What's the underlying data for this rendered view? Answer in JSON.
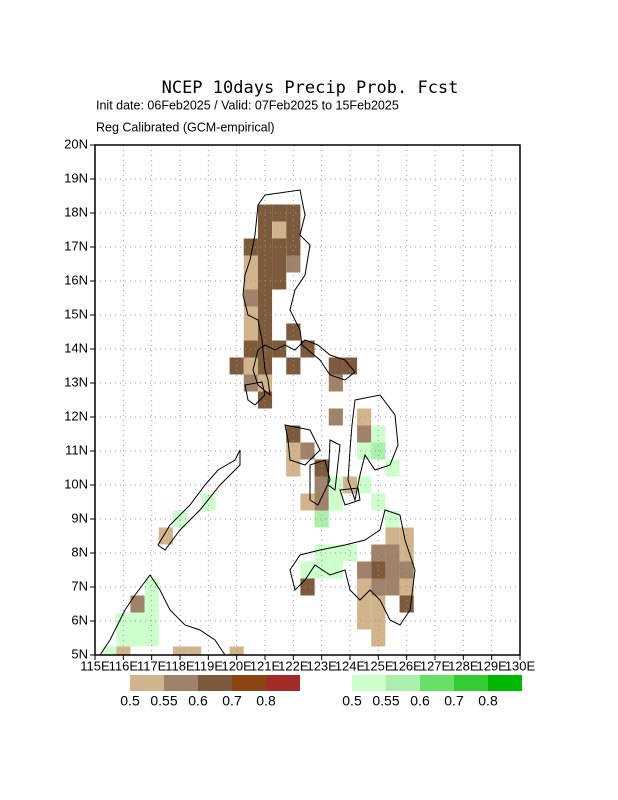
{
  "chart_data": {
    "type": "grid-map",
    "title": "NCEP 10days Precip Prob. Fcst",
    "subtitle": "Init date: 06Feb2025 / Valid: 07Feb2025 to 15Feb2025",
    "subtitle2": "Reg Calibrated (GCM-empirical)",
    "xlim": [
      115,
      130
    ],
    "ylim": [
      5,
      20
    ],
    "xticks": [
      {
        "value": 115,
        "label": "115E"
      },
      {
        "value": 116,
        "label": "116E"
      },
      {
        "value": 117,
        "label": "117E"
      },
      {
        "value": 118,
        "label": "118E"
      },
      {
        "value": 119,
        "label": "119E"
      },
      {
        "value": 120,
        "label": "120E"
      },
      {
        "value": 121,
        "label": "121E"
      },
      {
        "value": 122,
        "label": "122E"
      },
      {
        "value": 123,
        "label": "123E"
      },
      {
        "value": 124,
        "label": "124E"
      },
      {
        "value": 125,
        "label": "125E"
      },
      {
        "value": 126,
        "label": "126E"
      },
      {
        "value": 127,
        "label": "127E"
      },
      {
        "value": 128,
        "label": "128E"
      },
      {
        "value": 129,
        "label": "129E"
      },
      {
        "value": 130,
        "label": "130E"
      }
    ],
    "yticks": [
      {
        "value": 5,
        "label": "5N"
      },
      {
        "value": 6,
        "label": "6N"
      },
      {
        "value": 7,
        "label": "7N"
      },
      {
        "value": 8,
        "label": "8N"
      },
      {
        "value": 9,
        "label": "9N"
      },
      {
        "value": 10,
        "label": "10N"
      },
      {
        "value": 11,
        "label": "11N"
      },
      {
        "value": 12,
        "label": "12N"
      },
      {
        "value": 13,
        "label": "13N"
      },
      {
        "value": 14,
        "label": "14N"
      },
      {
        "value": 15,
        "label": "15N"
      },
      {
        "value": 16,
        "label": "16N"
      },
      {
        "value": 17,
        "label": "17N"
      },
      {
        "value": 18,
        "label": "18N"
      },
      {
        "value": 19,
        "label": "19N"
      },
      {
        "value": 20,
        "label": "20N"
      }
    ],
    "grid": true,
    "levels": [
      0.5,
      0.55,
      0.6,
      0.7,
      0.8
    ],
    "brown_colors": [
      "#d2b48c",
      "#a0826a",
      "#7d5a3c",
      "#8b4513",
      "#a52a2a"
    ],
    "green_colors": [
      "#ccffcc",
      "#aaf0aa",
      "#66e066",
      "#33cc33",
      "#00b800"
    ],
    "brown_cells": [
      [
        121,
        18,
        0.6
      ],
      [
        121.5,
        18,
        0.6
      ],
      [
        122,
        18,
        0.6
      ],
      [
        121,
        17.5,
        0.6
      ],
      [
        121.5,
        17.5,
        0.5
      ],
      [
        122,
        17.5,
        0.6
      ],
      [
        120.5,
        17,
        0.6
      ],
      [
        121,
        17,
        0.6
      ],
      [
        121.5,
        17,
        0.6
      ],
      [
        122,
        17,
        0.6
      ],
      [
        120.5,
        16.5,
        0.5
      ],
      [
        121,
        16.5,
        0.6
      ],
      [
        121.5,
        16.5,
        0.6
      ],
      [
        122,
        16.5,
        0.55
      ],
      [
        120.5,
        16,
        0.5
      ],
      [
        121,
        16,
        0.6
      ],
      [
        121.5,
        16,
        0.6
      ],
      [
        120.5,
        15.5,
        0.55
      ],
      [
        121,
        15.5,
        0.6
      ],
      [
        120.5,
        15,
        0.5
      ],
      [
        121,
        15,
        0.6
      ],
      [
        120.5,
        14.5,
        0.5
      ],
      [
        121,
        14.5,
        0.6
      ],
      [
        122,
        14.5,
        0.6
      ],
      [
        120.5,
        14,
        0.6
      ],
      [
        121,
        14,
        0.6
      ],
      [
        121.5,
        14,
        0.6
      ],
      [
        122.5,
        14,
        0.6
      ],
      [
        120,
        13.5,
        0.6
      ],
      [
        120.5,
        13.5,
        0.5
      ],
      [
        121,
        13.5,
        0.6
      ],
      [
        122,
        13.5,
        0.6
      ],
      [
        123.5,
        13.5,
        0.6
      ],
      [
        124,
        13.5,
        0.6
      ],
      [
        120.5,
        13,
        0.55
      ],
      [
        121,
        13,
        0.5
      ],
      [
        123.5,
        13,
        0.55
      ],
      [
        121,
        12.5,
        0.6
      ],
      [
        123.5,
        12,
        0.55
      ],
      [
        124.5,
        12,
        0.5
      ],
      [
        122,
        11.5,
        0.6
      ],
      [
        124.5,
        11.5,
        0.55
      ],
      [
        122,
        11,
        0.5
      ],
      [
        122.5,
        11,
        0.55
      ],
      [
        122,
        10.5,
        0.5
      ],
      [
        123,
        10.5,
        0.6
      ],
      [
        123,
        10,
        0.55
      ],
      [
        124,
        10,
        0.5
      ],
      [
        122.5,
        9.5,
        0.5
      ],
      [
        123,
        9.5,
        0.55
      ],
      [
        117.5,
        8.5,
        0.5
      ],
      [
        125.5,
        8.5,
        0.5
      ],
      [
        126,
        8.5,
        0.5
      ],
      [
        125,
        8,
        0.55
      ],
      [
        125.5,
        8,
        0.55
      ],
      [
        126,
        8,
        0.5
      ],
      [
        124.5,
        7.5,
        0.55
      ],
      [
        125,
        7.5,
        0.6
      ],
      [
        125.5,
        7.5,
        0.55
      ],
      [
        126,
        7.5,
        0.55
      ],
      [
        122.5,
        7,
        0.6
      ],
      [
        124.5,
        7,
        0.5
      ],
      [
        125,
        7,
        0.55
      ],
      [
        125.5,
        7,
        0.55
      ],
      [
        126,
        7,
        0.5
      ],
      [
        124.5,
        6.5,
        0.5
      ],
      [
        125,
        6.5,
        0.5
      ],
      [
        126,
        6.5,
        0.6
      ],
      [
        124.5,
        6,
        0.5
      ],
      [
        125,
        6,
        0.5
      ],
      [
        125,
        5.5,
        0.5
      ],
      [
        116.5,
        6.5,
        0.55
      ],
      [
        116,
        5,
        0.5
      ],
      [
        118,
        5,
        0.5
      ],
      [
        118.5,
        5,
        0.5
      ],
      [
        120,
        5,
        0.5
      ]
    ],
    "green_cells": [
      [
        125,
        11.5,
        0.5
      ],
      [
        124.5,
        11,
        0.5
      ],
      [
        125,
        11,
        0.55
      ],
      [
        123.5,
        10,
        0.5
      ],
      [
        124.5,
        10,
        0.5
      ],
      [
        125.5,
        10.5,
        0.5
      ],
      [
        119,
        9.5,
        0.5
      ],
      [
        123.5,
        9.5,
        0.5
      ],
      [
        125,
        9.5,
        0.5
      ],
      [
        118,
        9,
        0.5
      ],
      [
        123,
        9,
        0.55
      ],
      [
        125.5,
        9,
        0.5
      ],
      [
        123,
        8,
        0.5
      ],
      [
        123.5,
        8,
        0.5
      ],
      [
        124,
        8,
        0.5
      ],
      [
        122.5,
        7.5,
        0.5
      ],
      [
        123,
        7.5,
        0.5
      ],
      [
        123.5,
        7.5,
        0.5
      ],
      [
        117,
        7,
        0.5
      ],
      [
        117,
        6.5,
        0.5
      ],
      [
        116,
        6,
        0.5
      ],
      [
        116.5,
        6,
        0.5
      ],
      [
        117,
        6,
        0.5
      ],
      [
        116,
        5.5,
        0.5
      ],
      [
        116.5,
        5.5,
        0.5
      ],
      [
        117,
        5.5,
        0.5
      ],
      [
        115.5,
        5,
        0.5
      ]
    ]
  }
}
